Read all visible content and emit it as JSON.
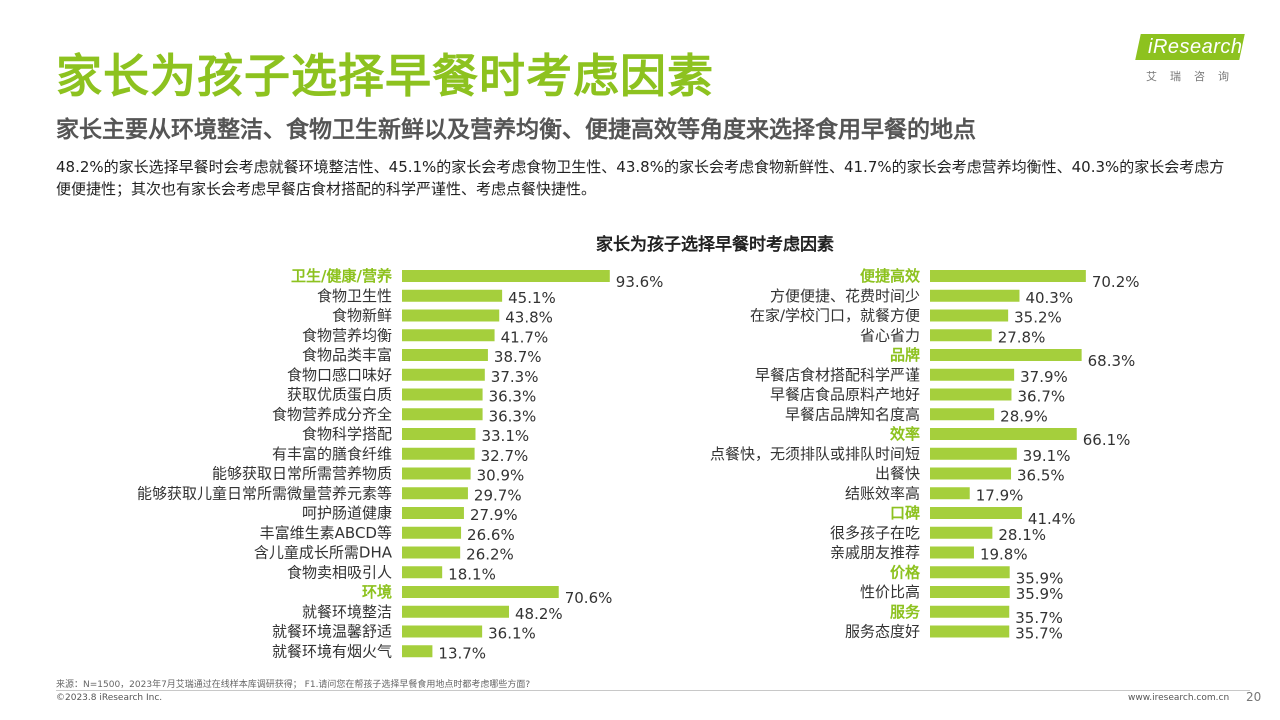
{
  "page": {
    "title": "家长为孩子选择早餐时考虑因素",
    "subtitle": "家长主要从环境整洁、食物卫生新鲜以及营养均衡、便捷高效等角度来选择食用早餐的地点",
    "summary": "48.2%的家长选择早餐时会考虑就餐环境整洁性、45.1%的家长会考虑食物卫生性、43.8%的家长会考虑食物新鲜性、41.7%的家长会考虑营养均衡性、40.3%的家长会考虑方便便捷性；其次也有家长会考虑早餐店食材搭配的科学严谨性、考虑点餐快捷性。",
    "source": "来源：N=1500，2023年7月艾瑞通过在线样本库调研获得； F1.请问您在帮孩子选择早餐食用地点时都考虑哪些方面?",
    "copyright": "©2023.8 iResearch Inc.",
    "website": "www.iresearch.com.cn",
    "page_number": "20"
  },
  "logo": {
    "text": "iResearch",
    "cn": "艾瑞咨询"
  },
  "colors": {
    "accent": "#8dc21f",
    "bar": "#a5cf3c",
    "text": "#333333"
  },
  "chart_data": {
    "type": "bar",
    "orientation": "horizontal",
    "title": "家长为孩子选择早餐时考虑因素",
    "unit": "%",
    "panels": [
      {
        "categories": [
          "卫生/健康/营养",
          "食物卫生性",
          "食物新鲜",
          "食物营养均衡",
          "食物品类丰富",
          "食物口感口味好",
          "获取优质蛋白质",
          "食物营养成分齐全",
          "食物科学搭配",
          "有丰富的膳食纤维",
          "能够获取日常所需营养物质",
          "能够获取儿童日常所需微量营养元素等",
          "呵护肠道健康",
          "丰富维生素ABCD等",
          "含儿童成长所需DHA",
          "食物卖相吸引人",
          "环境",
          "就餐环境整洁",
          "就餐环境温馨舒适",
          "就餐环境有烟火气"
        ],
        "values": [
          93.6,
          45.1,
          43.8,
          41.7,
          38.7,
          37.3,
          36.3,
          36.3,
          33.1,
          32.7,
          30.9,
          29.7,
          27.9,
          26.6,
          26.2,
          18.1,
          70.6,
          48.2,
          36.1,
          13.7
        ],
        "is_group": [
          true,
          false,
          false,
          false,
          false,
          false,
          false,
          false,
          false,
          false,
          false,
          false,
          false,
          false,
          false,
          false,
          true,
          false,
          false,
          false
        ]
      },
      {
        "categories": [
          "便捷高效",
          "方便便捷、花费时间少",
          "在家/学校门口，就餐方便",
          "省心省力",
          "品牌",
          "早餐店食材搭配科学严谨",
          "早餐店食品原料产地好",
          "早餐店品牌知名度高",
          "效率",
          "点餐快，无须排队或排队时间短",
          "出餐快",
          "结账效率高",
          "口碑",
          "很多孩子在吃",
          "亲戚朋友推荐",
          "价格",
          "性价比高",
          "服务",
          "服务态度好"
        ],
        "values": [
          70.2,
          40.3,
          35.2,
          27.8,
          68.3,
          37.9,
          36.7,
          28.9,
          66.1,
          39.1,
          36.5,
          17.9,
          41.4,
          28.1,
          19.8,
          35.9,
          35.9,
          35.7,
          35.7
        ],
        "is_group": [
          true,
          false,
          false,
          false,
          true,
          false,
          false,
          false,
          true,
          false,
          false,
          false,
          true,
          false,
          false,
          true,
          false,
          true,
          false
        ]
      }
    ]
  }
}
